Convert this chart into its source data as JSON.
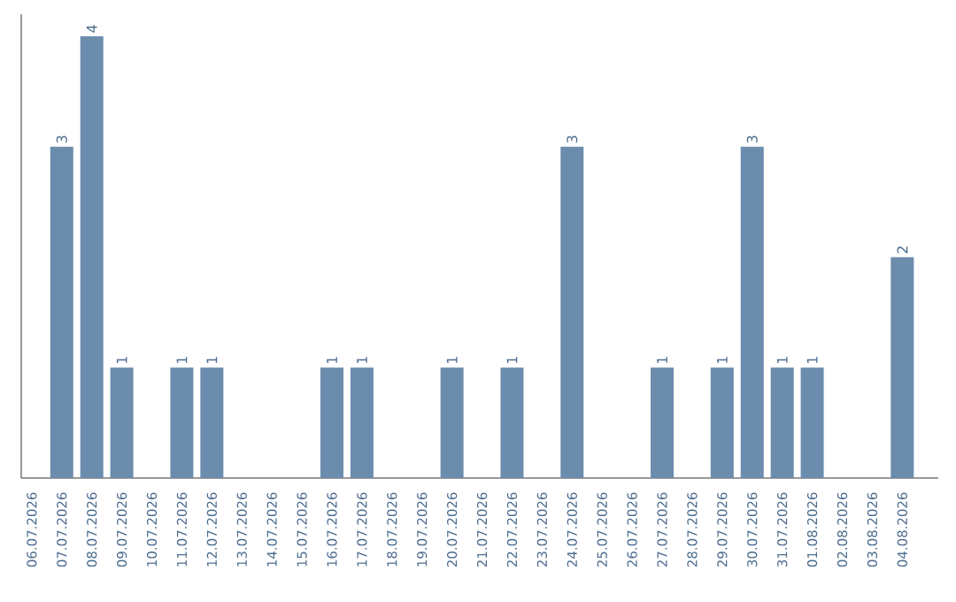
{
  "chart_data": {
    "type": "bar",
    "categories": [
      "06.07.2026",
      "07.07.2026",
      "08.07.2026",
      "09.07.2026",
      "10.07.2026",
      "11.07.2026",
      "12.07.2026",
      "13.07.2026",
      "14.07.2026",
      "15.07.2026",
      "16.07.2026",
      "17.07.2026",
      "18.07.2026",
      "19.07.2026",
      "20.07.2026",
      "21.07.2026",
      "22.07.2026",
      "23.07.2026",
      "24.07.2026",
      "25.07.2026",
      "26.07.2026",
      "27.07.2026",
      "28.07.2026",
      "29.07.2026",
      "30.07.2026",
      "31.07.2026",
      "01.08.2026",
      "02.08.2026",
      "03.08.2026",
      "04.08.2026"
    ],
    "values": [
      0,
      3,
      4,
      1,
      0,
      1,
      1,
      0,
      0,
      0,
      1,
      1,
      0,
      0,
      1,
      0,
      1,
      0,
      3,
      0,
      0,
      1,
      0,
      1,
      3,
      1,
      1,
      0,
      0,
      2
    ],
    "value_labels": [
      null,
      "3",
      "4",
      "1",
      null,
      "1",
      "1",
      null,
      null,
      null,
      "1",
      "1",
      null,
      null,
      "1",
      null,
      "1",
      null,
      "3",
      null,
      null,
      "1",
      null,
      "1",
      "3",
      "1",
      "1",
      null,
      null,
      "2"
    ],
    "color": "#6b8cad",
    "ylim": [
      0,
      4.2
    ],
    "grid": false
  }
}
